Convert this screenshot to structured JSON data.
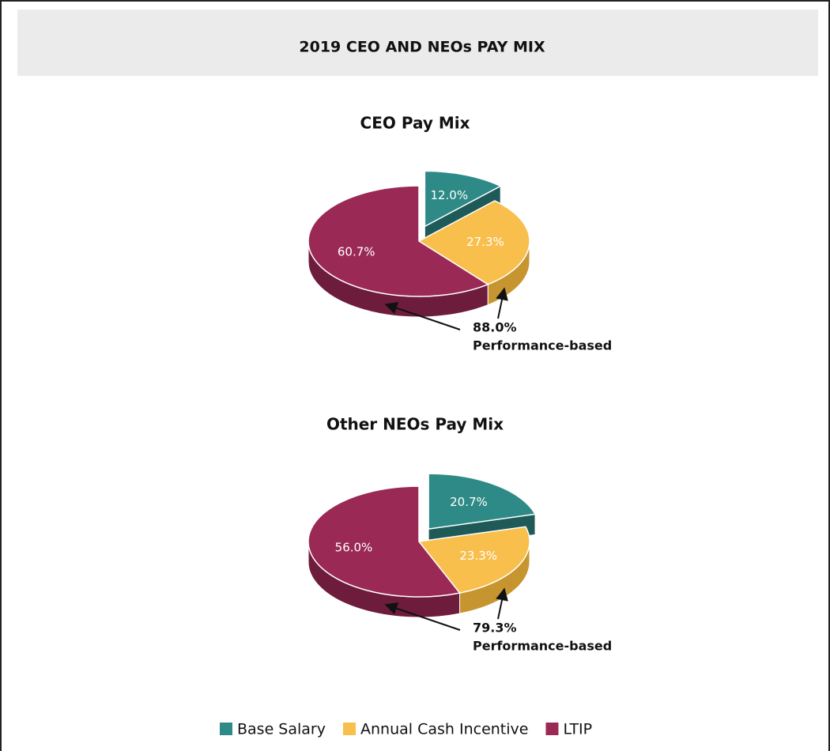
{
  "title": "2019 CEO AND NEOs PAY MIX",
  "legend": {
    "labels": [
      "Base Salary",
      "Annual Cash Incentive",
      "LTIP"
    ],
    "colors": [
      "#2e8a86",
      "#f8bf4d",
      "#9a2a55"
    ],
    "side_colors": [
      "#1e5b58",
      "#c7952f",
      "#6e1c3c"
    ]
  },
  "chart_data": [
    {
      "type": "pie",
      "title": "CEO Pay Mix",
      "values": [
        12.0,
        27.3,
        60.7
      ],
      "value_labels": [
        "12.0%",
        "27.3%",
        "60.7%"
      ],
      "exploded": [
        true,
        false,
        false
      ],
      "annotation": [
        "88.0%",
        "Performance-based"
      ]
    },
    {
      "type": "pie",
      "title": "Other NEOs Pay Mix",
      "values": [
        20.7,
        23.3,
        56.0
      ],
      "value_labels": [
        "20.7%",
        "23.3%",
        "56.0%"
      ],
      "exploded": [
        true,
        false,
        false
      ],
      "annotation": [
        "79.3%",
        "Performance-based"
      ]
    }
  ]
}
